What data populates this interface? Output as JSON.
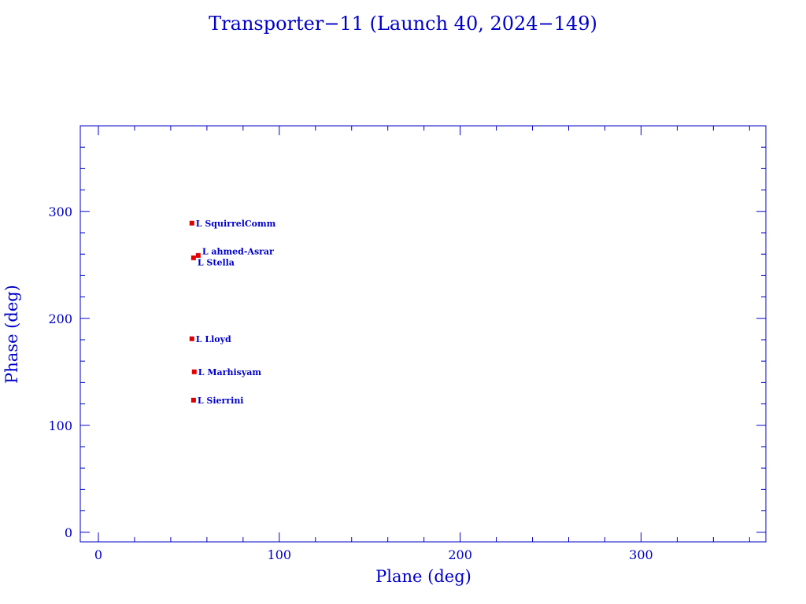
{
  "chart_data": {
    "type": "scatter",
    "title": "Transporter−11 (Launch 40, 2024−149)",
    "xlabel": "Plane (deg)",
    "ylabel": "Phase (deg)",
    "xlim": [
      -10,
      369
    ],
    "ylim": [
      -9,
      380
    ],
    "xticks": [
      0,
      100,
      200,
      300
    ],
    "yticks": [
      0,
      100,
      200,
      300
    ],
    "minor_tick_step": 20,
    "grid": false,
    "axis_color": "#0000c8",
    "marker_color": "#e00000",
    "label_color": "#0000c8",
    "points": [
      {
        "label": "L SquirrelComm",
        "x": 51.7,
        "y": 289
      },
      {
        "label": "L ahmed-Asrar",
        "x": 55.2,
        "y": 258.8
      },
      {
        "label": "L Stella",
        "x": 52.6,
        "y": 256.6
      },
      {
        "label": "L Lloyd",
        "x": 51.7,
        "y": 180.9
      },
      {
        "label": "L Marhisyam",
        "x": 53.0,
        "y": 150
      },
      {
        "label": "L Sierrini",
        "x": 52.6,
        "y": 123.5
      }
    ]
  }
}
